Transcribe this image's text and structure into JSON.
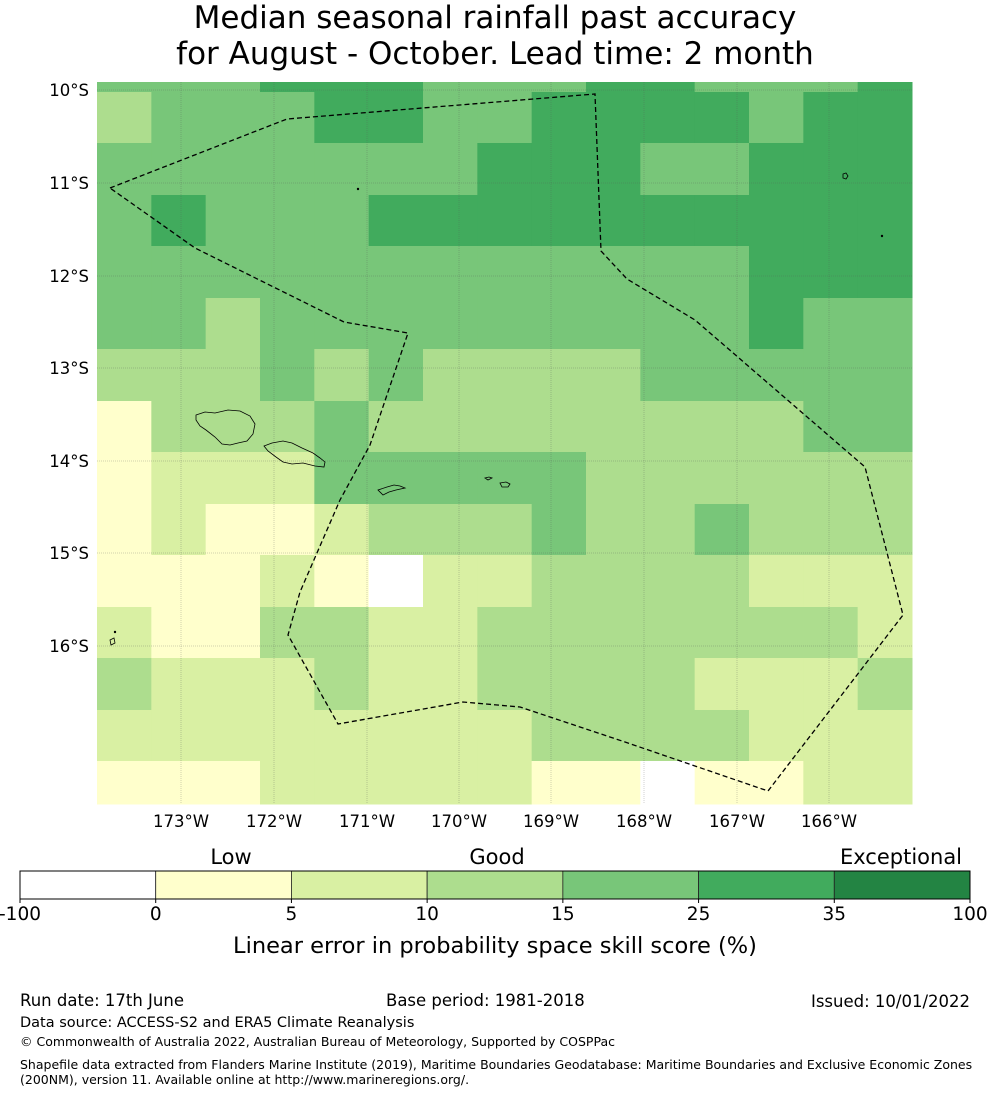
{
  "title": {
    "line1": "Median seasonal rainfall past accuracy",
    "line2": "for August - October. Lead time: 2 month"
  },
  "map": {
    "lat_labels": [
      "10°S",
      "11°S",
      "12°S",
      "13°S",
      "14°S",
      "15°S",
      "16°S"
    ],
    "lon_labels": [
      "173°W",
      "172°W",
      "171°W",
      "170°W",
      "169°W",
      "168°W",
      "167°W",
      "166°W"
    ],
    "grid_levels": [
      [
        4,
        4,
        4,
        5,
        5,
        5,
        4,
        4,
        4,
        5,
        5,
        4,
        4,
        4,
        5
      ],
      [
        3,
        4,
        4,
        4,
        5,
        5,
        4,
        4,
        5,
        5,
        5,
        5,
        4,
        5,
        5
      ],
      [
        4,
        4,
        4,
        4,
        4,
        4,
        4,
        5,
        5,
        5,
        4,
        4,
        5,
        5,
        5
      ],
      [
        4,
        5,
        4,
        4,
        4,
        5,
        5,
        5,
        5,
        5,
        5,
        5,
        5,
        5,
        5
      ],
      [
        4,
        4,
        4,
        4,
        4,
        4,
        4,
        4,
        4,
        4,
        4,
        4,
        5,
        5,
        5
      ],
      [
        4,
        4,
        3,
        4,
        4,
        4,
        4,
        4,
        4,
        4,
        4,
        4,
        5,
        4,
        4
      ],
      [
        3,
        3,
        3,
        4,
        3,
        4,
        3,
        3,
        3,
        3,
        4,
        4,
        4,
        4,
        4
      ],
      [
        1,
        3,
        3,
        3,
        4,
        3,
        3,
        3,
        3,
        3,
        3,
        3,
        3,
        4,
        4
      ],
      [
        1,
        2,
        2,
        2,
        4,
        4,
        4,
        4,
        4,
        3,
        3,
        3,
        3,
        3,
        3
      ],
      [
        1,
        2,
        1,
        1,
        2,
        3,
        3,
        3,
        4,
        3,
        3,
        4,
        3,
        3,
        3
      ],
      [
        1,
        1,
        1,
        2,
        1,
        0,
        2,
        2,
        3,
        3,
        3,
        3,
        2,
        2,
        2
      ],
      [
        2,
        1,
        1,
        3,
        3,
        2,
        2,
        3,
        3,
        3,
        3,
        3,
        3,
        3,
        2
      ],
      [
        3,
        2,
        2,
        2,
        3,
        2,
        2,
        3,
        3,
        3,
        3,
        2,
        2,
        2,
        3
      ],
      [
        2,
        2,
        2,
        2,
        2,
        2,
        2,
        2,
        3,
        3,
        3,
        3,
        2,
        2,
        2
      ],
      [
        1,
        1,
        1,
        2,
        2,
        2,
        2,
        2,
        1,
        1,
        0,
        1,
        1,
        2,
        2
      ]
    ]
  },
  "legend": {
    "categories": [
      "Low",
      "Good",
      "Exceptional"
    ],
    "colors": [
      "#ffffff",
      "#ffffcc",
      "#d9f0a3",
      "#addd8e",
      "#78c679",
      "#41ab5d",
      "#238443"
    ],
    "ticks": [
      "-100",
      "0",
      "5",
      "10",
      "15",
      "25",
      "35",
      "100"
    ],
    "label": "Linear error in probability space skill score (%)"
  },
  "footer": {
    "run_date": "Run date: 17th June",
    "base_period": "Base period: 1981-2018",
    "issued": "Issued: 10/01/2022",
    "data_source": "Data source: ACCESS-S2 and ERA5 Climate Reanalysis",
    "copyright": "© Commonwealth of Australia 2022, Australian Bureau of Meteorology, Supported by COSPPac",
    "shapefile_line1": "Shapefile data extracted from Flanders Marine Institute (2019), Maritime Boundaries Geodatabase: Maritime Boundaries and Exclusive Economic Zones",
    "shapefile_line2": "(200NM), version 11. Available online at http://www.marineregions.org/."
  }
}
